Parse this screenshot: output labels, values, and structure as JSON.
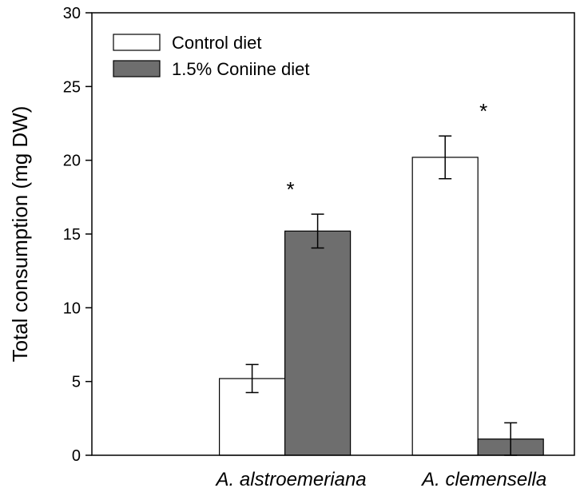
{
  "chart_data": {
    "type": "bar",
    "title": "",
    "xlabel": "",
    "ylabel": "Total consumption (mg DW)",
    "ylim": [
      0,
      30
    ],
    "yticks": [
      0,
      5,
      10,
      15,
      20,
      25,
      30
    ],
    "categories": [
      "A. alstroemeriana",
      "A. clemensella"
    ],
    "series": [
      {
        "name": "Control diet",
        "values": [
          5.2,
          20.2
        ],
        "errors": [
          0.95,
          1.45
        ],
        "color": "#ffffff"
      },
      {
        "name": "1.5% Coniine diet",
        "values": [
          15.2,
          1.1
        ],
        "errors": [
          1.15,
          1.1
        ],
        "color": "#6e6e6e"
      }
    ],
    "significance": [
      "*",
      "*"
    ],
    "legend_position": "top-left",
    "grid": false
  }
}
